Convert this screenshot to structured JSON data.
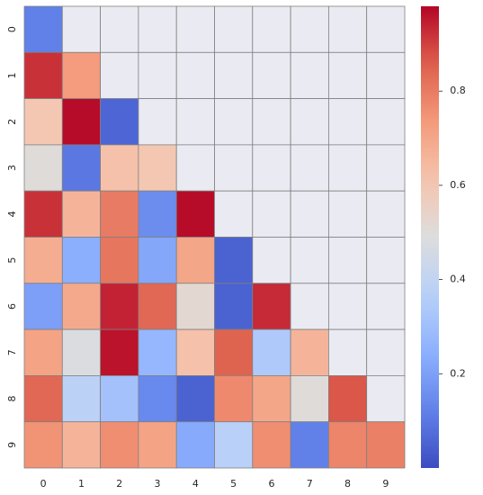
{
  "chart_data": {
    "type": "heatmap",
    "title": "",
    "xlabel": "",
    "ylabel": "",
    "x_categories": [
      "0",
      "1",
      "2",
      "3",
      "4",
      "5",
      "6",
      "7",
      "8",
      "9"
    ],
    "y_categories": [
      "0",
      "1",
      "2",
      "3",
      "4",
      "5",
      "6",
      "7",
      "8",
      "9"
    ],
    "mask": "upper triangle (cells where column > row) shown as empty",
    "values": [
      [
        0.12,
        null,
        null,
        null,
        null,
        null,
        null,
        null,
        null,
        null
      ],
      [
        0.92,
        0.73,
        null,
        null,
        null,
        null,
        null,
        null,
        null,
        null
      ],
      [
        0.6,
        0.97,
        0.06,
        null,
        null,
        null,
        null,
        null,
        null,
        null
      ],
      [
        0.5,
        0.1,
        0.62,
        0.6,
        null,
        null,
        null,
        null,
        null,
        null
      ],
      [
        0.92,
        0.66,
        0.8,
        0.15,
        0.97,
        null,
        null,
        null,
        null,
        null
      ],
      [
        0.68,
        0.24,
        0.81,
        0.22,
        0.7,
        0.05,
        null,
        null,
        null,
        null
      ],
      [
        0.2,
        0.69,
        0.94,
        0.84,
        0.52,
        0.05,
        0.93,
        null,
        null,
        null
      ],
      [
        0.71,
        0.48,
        0.96,
        0.27,
        0.62,
        0.85,
        0.34,
        0.66,
        null,
        null
      ],
      [
        0.84,
        0.38,
        0.31,
        0.14,
        0.05,
        0.77,
        0.7,
        0.5,
        0.87,
        null
      ],
      [
        0.75,
        0.66,
        0.76,
        0.71,
        0.23,
        0.37,
        0.76,
        0.12,
        0.78,
        0.79
      ]
    ],
    "colormap": "coolwarm",
    "vmin": 0.0,
    "vmax": 0.98,
    "colorbar_ticks": [
      "0.2",
      "0.4",
      "0.6",
      "0.8"
    ],
    "colorbar_tick_values": [
      0.2,
      0.4,
      0.6,
      0.8
    ],
    "colors": {
      "mask_fill": "#eaeaf2",
      "cell_line": "#808080",
      "tick_text": "#262626"
    }
  }
}
